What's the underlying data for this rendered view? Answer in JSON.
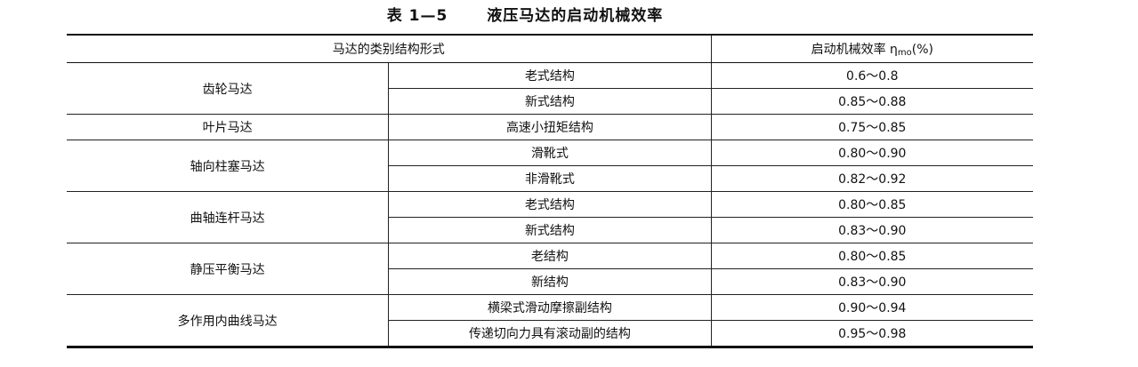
{
  "title": {
    "number": "表 1—5",
    "text": "液压马达的启动机械效率"
  },
  "header": {
    "category": "马达的类别结构形式",
    "efficiency": "启动机械效率 η",
    "efficiency_sub": "mo",
    "efficiency_unit": "(%)"
  },
  "groups": [
    {
      "name": "齿轮马达",
      "rows": [
        {
          "structure": "老式结构",
          "value": "0.6～0.8"
        },
        {
          "structure": "新式结构",
          "value": "0.85～0.88"
        }
      ]
    },
    {
      "name": "叶片马达",
      "rows": [
        {
          "structure": "高速小扭矩结构",
          "value": "0.75～0.85"
        }
      ]
    },
    {
      "name": "轴向柱塞马达",
      "rows": [
        {
          "structure": "滑靴式",
          "value": "0.80～0.90"
        },
        {
          "structure": "非滑靴式",
          "value": "0.82～0.92"
        }
      ]
    },
    {
      "name": "曲轴连杆马达",
      "rows": [
        {
          "structure": "老式结构",
          "value": "0.80～0.85"
        },
        {
          "structure": "新式结构",
          "value": "0.83～0.90"
        }
      ]
    },
    {
      "name": "静压平衡马达",
      "rows": [
        {
          "structure": "老结构",
          "value": "0.80～0.85"
        },
        {
          "structure": "新结构",
          "value": "0.83～0.90"
        }
      ]
    },
    {
      "name": "多作用内曲线马达",
      "rows": [
        {
          "structure": "横梁式滑动摩擦副结构",
          "value": "0.90～0.94"
        },
        {
          "structure": "传递切向力具有滚动副的结构",
          "value": "0.95～0.98"
        }
      ]
    }
  ]
}
